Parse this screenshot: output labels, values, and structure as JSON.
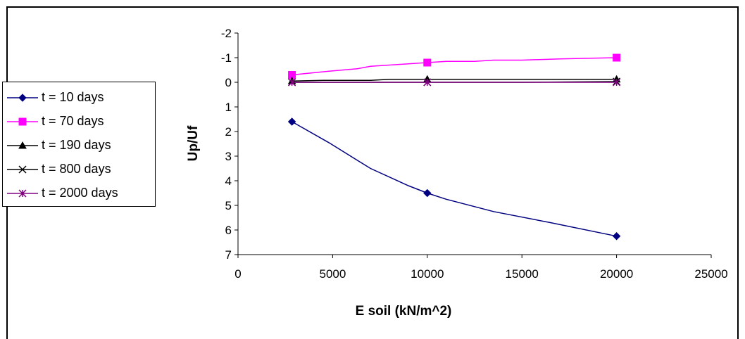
{
  "chart_data": {
    "type": "line",
    "title": "",
    "xlabel": "E soil (kN/m^2)",
    "ylabel": "Up/Uf",
    "xlim": [
      0,
      25000
    ],
    "ylim": [
      -2,
      7
    ],
    "y_inverted": true,
    "x_ticks": [
      0,
      5000,
      10000,
      15000,
      20000,
      25000
    ],
    "y_ticks": [
      -2,
      -1,
      0,
      1,
      2,
      3,
      4,
      5,
      6,
      7
    ],
    "grid": false,
    "legend_position": "left",
    "series": [
      {
        "name": "t = 10 days",
        "color": "#000080",
        "marker": "diamond",
        "x": [
          2850,
          4800,
          7000,
          9000,
          10000,
          11000,
          13500,
          16500,
          20000
        ],
        "y": [
          1.6,
          2.45,
          3.5,
          4.2,
          4.5,
          4.75,
          5.25,
          5.7,
          6.25
        ],
        "marker_x": [
          2850,
          10000,
          20000
        ],
        "marker_y": [
          1.6,
          4.5,
          6.25
        ]
      },
      {
        "name": "t = 70 days",
        "color": "#ff00ff",
        "marker": "square",
        "x": [
          2850,
          4800,
          6300,
          7000,
          9000,
          10000,
          11000,
          12500,
          13500,
          15000,
          17000,
          20000
        ],
        "y": [
          -0.3,
          -0.45,
          -0.55,
          -0.65,
          -0.75,
          -0.8,
          -0.85,
          -0.85,
          -0.9,
          -0.9,
          -0.95,
          -1.0
        ],
        "marker_x": [
          2850,
          10000,
          20000
        ],
        "marker_y": [
          -0.3,
          -0.8,
          -1.0
        ]
      },
      {
        "name": "t = 190 days",
        "color": "#000000",
        "marker": "triangle",
        "x": [
          2850,
          4500,
          7000,
          8000,
          10000,
          15000,
          20000
        ],
        "y": [
          -0.05,
          -0.08,
          -0.08,
          -0.12,
          -0.12,
          -0.12,
          -0.12
        ],
        "marker_x": [
          2850,
          10000,
          20000
        ],
        "marker_y": [
          -0.05,
          -0.12,
          -0.12
        ]
      },
      {
        "name": "t = 800 days",
        "color": "#000000",
        "marker": "x",
        "x": [
          2850,
          10000,
          15000,
          20000
        ],
        "y": [
          0,
          0,
          0,
          -0.03
        ],
        "marker_x": [
          2850,
          10000,
          20000
        ],
        "marker_y": [
          0,
          0,
          -0.03
        ]
      },
      {
        "name": "t = 2000 days",
        "color": "#800080",
        "marker": "asterisk",
        "x": [
          2850,
          10000,
          20000
        ],
        "y": [
          0,
          0,
          0
        ],
        "marker_x": [
          2850,
          10000,
          20000
        ],
        "marker_y": [
          0,
          0,
          0
        ]
      }
    ]
  }
}
